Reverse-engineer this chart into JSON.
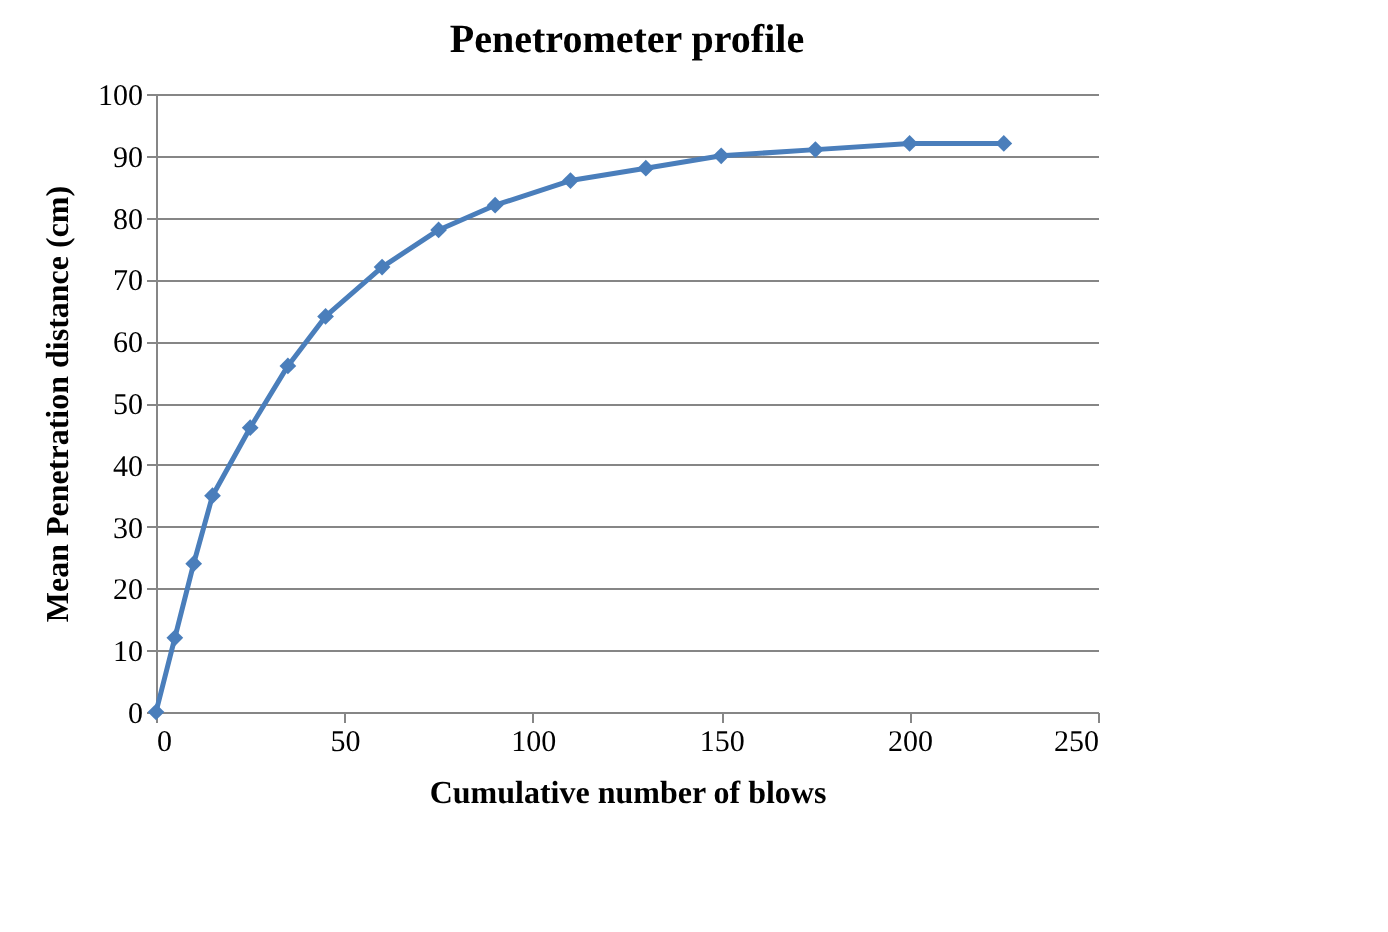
{
  "chart_data": {
    "type": "line",
    "title": "Penetrometer  profile",
    "xlabel": "Cumulative  number  of blows",
    "ylabel": "Mean  Penetration  distance  (cm)",
    "x": [
      0,
      5,
      10,
      15,
      25,
      35,
      45,
      60,
      75,
      90,
      110,
      130,
      150,
      175,
      200,
      225
    ],
    "series": [
      {
        "color": "#4a7ebb",
        "values": [
          0,
          12,
          24,
          35,
          46,
          56,
          64,
          72,
          78,
          82,
          86,
          88,
          90,
          91,
          92,
          92
        ]
      }
    ],
    "xlim": [
      0,
      250
    ],
    "xticks": [
      0,
      50,
      100,
      150,
      200,
      250
    ],
    "ylim": [
      0,
      100
    ],
    "yticks": [
      0,
      10,
      20,
      30,
      40,
      50,
      60,
      70,
      80,
      90,
      100
    ],
    "grid": "y",
    "marker": "diamond",
    "line_style": "solid",
    "legend": false
  }
}
